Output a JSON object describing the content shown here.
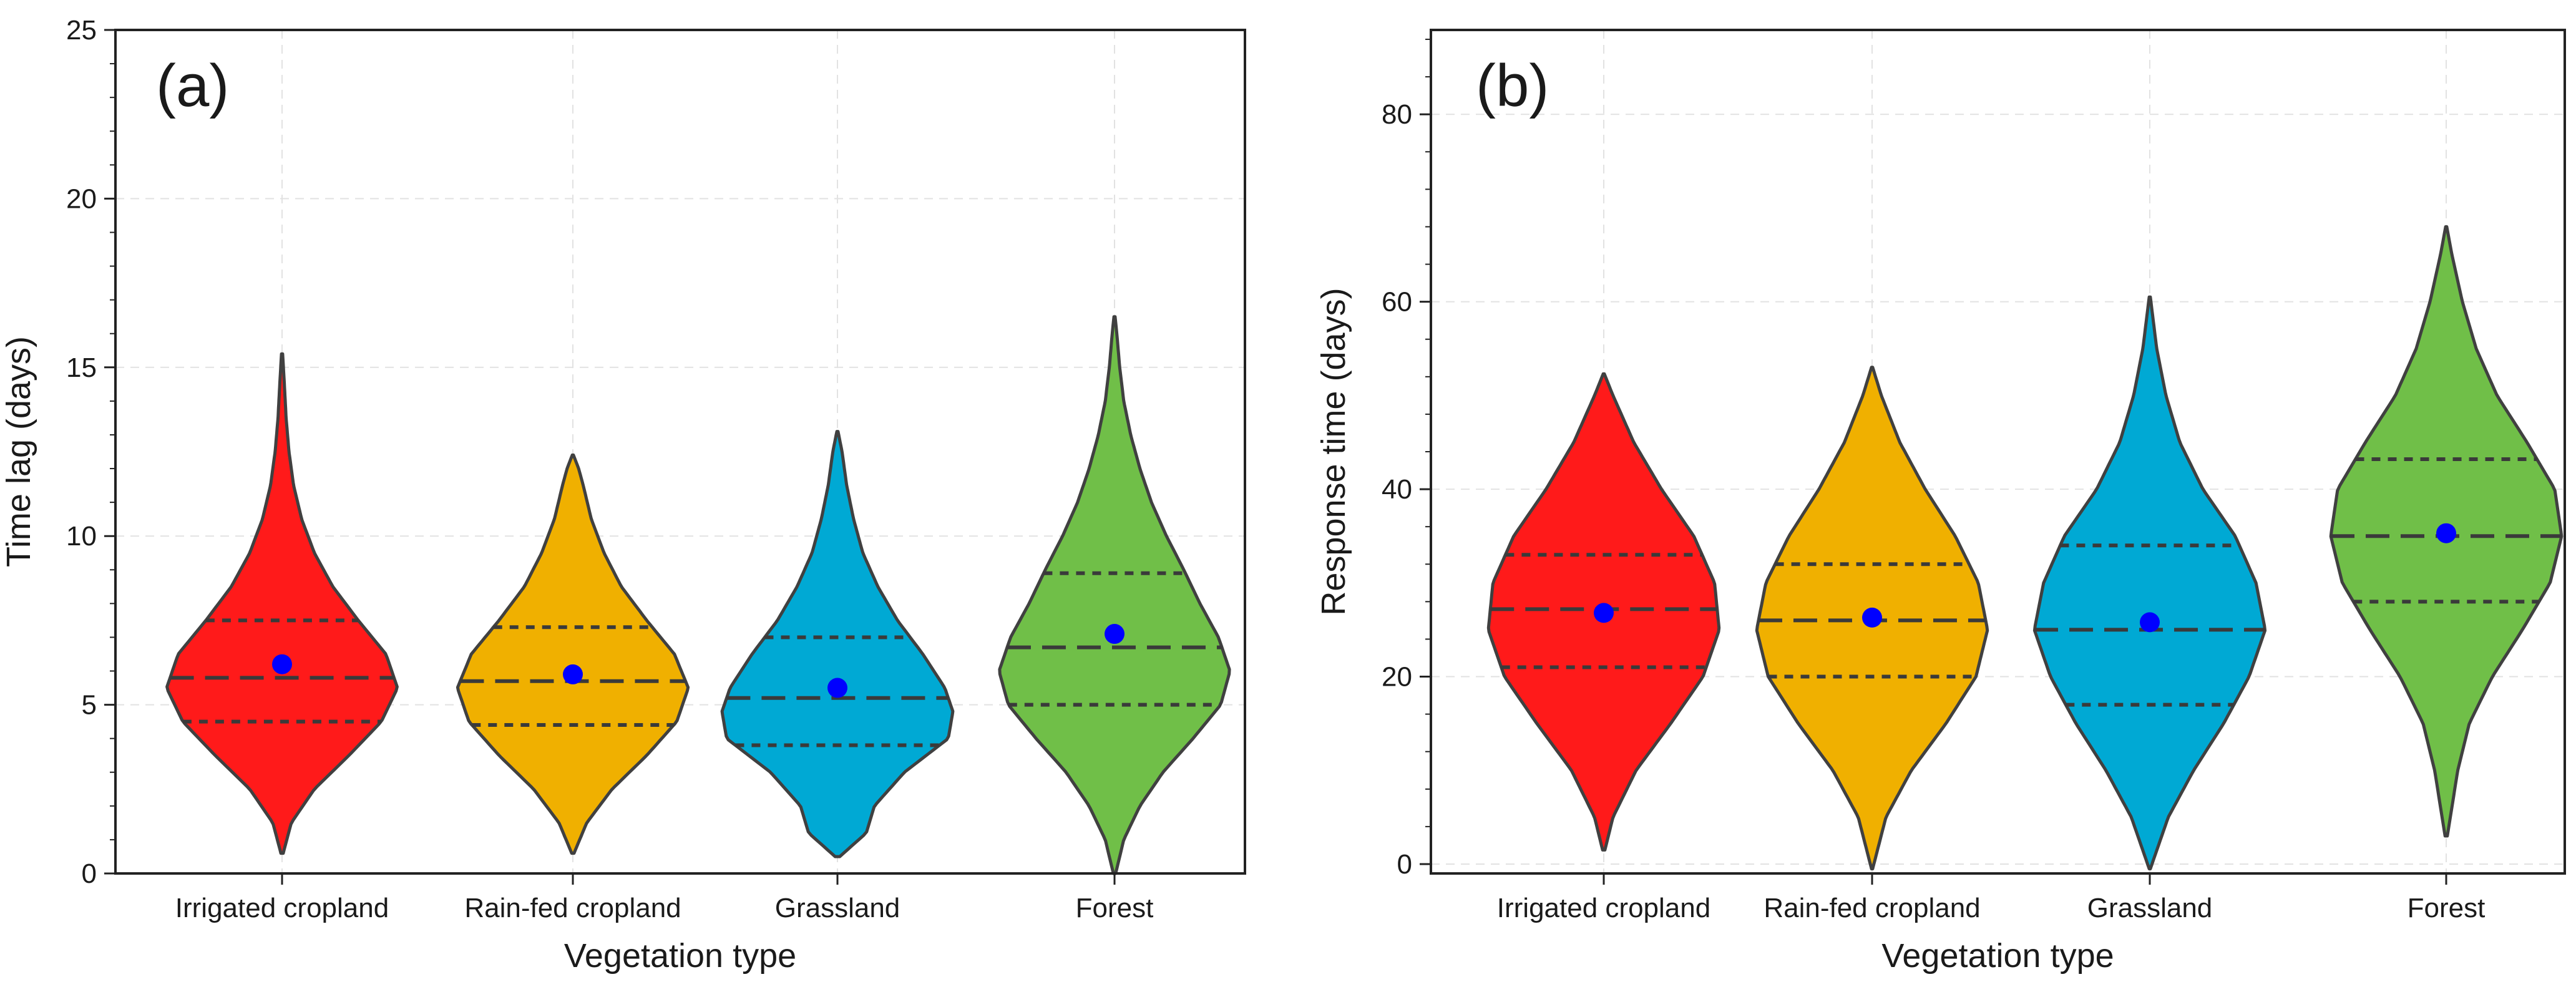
{
  "chart_data": [
    {
      "type": "violin",
      "panel_label": "(a)",
      "xlabel": "Vegetation type",
      "ylabel": "Time lag (days)",
      "ylim": [
        0,
        25
      ],
      "yticks": [
        0,
        5,
        10,
        15,
        20,
        25
      ],
      "grid": true,
      "categories": [
        "Irrigated cropland",
        "Rain-fed cropland",
        "Grassland",
        "Forest"
      ],
      "series": [
        {
          "name": "Irrigated cropland",
          "color": "#ff1a1a",
          "min": 0.6,
          "max": 15.4,
          "q1": 4.5,
          "median": 5.8,
          "q3": 7.5,
          "mean": 6.2,
          "shape": [
            [
              0.6,
              0.01
            ],
            [
              1.5,
              0.08
            ],
            [
              2.5,
              0.28
            ],
            [
              3.5,
              0.58
            ],
            [
              4.5,
              0.86
            ],
            [
              5.5,
              1.0
            ],
            [
              6.5,
              0.9
            ],
            [
              7.5,
              0.66
            ],
            [
              8.5,
              0.44
            ],
            [
              9.5,
              0.28
            ],
            [
              10.5,
              0.17
            ],
            [
              11.5,
              0.1
            ],
            [
              12.5,
              0.06
            ],
            [
              13.5,
              0.035
            ],
            [
              14.5,
              0.02
            ],
            [
              15.4,
              0.005
            ]
          ]
        },
        {
          "name": "Rain-fed cropland",
          "color": "#f0b000",
          "min": 0.6,
          "max": 12.4,
          "q1": 4.4,
          "median": 5.7,
          "q3": 7.3,
          "mean": 5.9,
          "shape": [
            [
              0.6,
              0.01
            ],
            [
              1.5,
              0.12
            ],
            [
              2.5,
              0.34
            ],
            [
              3.5,
              0.64
            ],
            [
              4.5,
              0.9
            ],
            [
              5.5,
              1.0
            ],
            [
              6.5,
              0.88
            ],
            [
              7.5,
              0.64
            ],
            [
              8.5,
              0.42
            ],
            [
              9.5,
              0.27
            ],
            [
              10.5,
              0.16
            ],
            [
              11.5,
              0.09
            ],
            [
              12.0,
              0.05
            ],
            [
              12.4,
              0.005
            ]
          ]
        },
        {
          "name": "Grassland",
          "color": "#00a9d4",
          "min": 0.5,
          "max": 13.1,
          "q1": 3.8,
          "median": 5.2,
          "q3": 7.0,
          "mean": 5.5,
          "shape": [
            [
              0.5,
              0.02
            ],
            [
              1.2,
              0.25
            ],
            [
              2.0,
              0.32
            ],
            [
              3.0,
              0.58
            ],
            [
              4.0,
              0.96
            ],
            [
              4.8,
              1.0
            ],
            [
              5.5,
              0.93
            ],
            [
              6.5,
              0.74
            ],
            [
              7.5,
              0.52
            ],
            [
              8.5,
              0.35
            ],
            [
              9.5,
              0.22
            ],
            [
              10.5,
              0.14
            ],
            [
              11.5,
              0.08
            ],
            [
              12.5,
              0.04
            ],
            [
              13.1,
              0.005
            ]
          ]
        },
        {
          "name": "Forest",
          "color": "#70bf48",
          "min": 0.0,
          "max": 16.5,
          "q1": 5.0,
          "median": 6.7,
          "q3": 8.9,
          "mean": 7.1,
          "shape": [
            [
              0.0,
              0.01
            ],
            [
              1.0,
              0.08
            ],
            [
              2.0,
              0.22
            ],
            [
              3.0,
              0.42
            ],
            [
              4.0,
              0.68
            ],
            [
              5.0,
              0.92
            ],
            [
              6.0,
              1.0
            ],
            [
              7.0,
              0.9
            ],
            [
              8.0,
              0.74
            ],
            [
              9.0,
              0.6
            ],
            [
              10.0,
              0.45
            ],
            [
              11.0,
              0.32
            ],
            [
              12.0,
              0.22
            ],
            [
              13.0,
              0.14
            ],
            [
              14.0,
              0.08
            ],
            [
              15.0,
              0.045
            ],
            [
              16.0,
              0.02
            ],
            [
              16.5,
              0.005
            ]
          ]
        }
      ]
    },
    {
      "type": "violin",
      "panel_label": "(b)",
      "xlabel": "Vegetation type",
      "ylabel": "Response time (days)",
      "ylim": [
        -1,
        89
      ],
      "yticks": [
        0,
        20,
        40,
        60,
        80
      ],
      "grid": true,
      "categories": [
        "Irrigated cropland",
        "Rain-fed cropland",
        "Grassland",
        "Forest"
      ],
      "series": [
        {
          "name": "Irrigated cropland",
          "color": "#ff1a1a",
          "min": 1.5,
          "max": 52.3,
          "q1": 21.0,
          "median": 27.2,
          "q3": 33.0,
          "mean": 26.8,
          "shape": [
            [
              1.5,
              0.01
            ],
            [
              5,
              0.08
            ],
            [
              10,
              0.28
            ],
            [
              15,
              0.58
            ],
            [
              20,
              0.86
            ],
            [
              25,
              1.0
            ],
            [
              30,
              0.96
            ],
            [
              35,
              0.78
            ],
            [
              40,
              0.5
            ],
            [
              45,
              0.26
            ],
            [
              50,
              0.08
            ],
            [
              52.3,
              0.005
            ]
          ]
        },
        {
          "name": "Rain-fed cropland",
          "color": "#f0b000",
          "min": -0.5,
          "max": 53.0,
          "q1": 20.0,
          "median": 26.0,
          "q3": 32.0,
          "mean": 26.3,
          "shape": [
            [
              -0.5,
              0.005
            ],
            [
              5,
              0.12
            ],
            [
              10,
              0.34
            ],
            [
              15,
              0.64
            ],
            [
              20,
              0.9
            ],
            [
              25,
              1.0
            ],
            [
              30,
              0.92
            ],
            [
              35,
              0.72
            ],
            [
              40,
              0.46
            ],
            [
              45,
              0.24
            ],
            [
              50,
              0.08
            ],
            [
              53.0,
              0.005
            ]
          ]
        },
        {
          "name": "Grassland",
          "color": "#00a9d4",
          "min": -0.5,
          "max": 60.5,
          "q1": 17.0,
          "median": 25.0,
          "q3": 34.0,
          "mean": 25.8,
          "shape": [
            [
              -0.5,
              0.005
            ],
            [
              5,
              0.16
            ],
            [
              10,
              0.38
            ],
            [
              15,
              0.64
            ],
            [
              20,
              0.86
            ],
            [
              25,
              1.0
            ],
            [
              30,
              0.92
            ],
            [
              35,
              0.74
            ],
            [
              40,
              0.46
            ],
            [
              45,
              0.26
            ],
            [
              50,
              0.14
            ],
            [
              55,
              0.06
            ],
            [
              60.5,
              0.005
            ]
          ]
        },
        {
          "name": "Forest",
          "color": "#70bf48",
          "min": 3.0,
          "max": 68.0,
          "q1": 28.0,
          "median": 35.0,
          "q3": 43.2,
          "mean": 35.3,
          "shape": [
            [
              3,
              0.01
            ],
            [
              10,
              0.1
            ],
            [
              15,
              0.2
            ],
            [
              20,
              0.4
            ],
            [
              25,
              0.66
            ],
            [
              30,
              0.9
            ],
            [
              35,
              1.0
            ],
            [
              40,
              0.94
            ],
            [
              45,
              0.7
            ],
            [
              50,
              0.44
            ],
            [
              55,
              0.26
            ],
            [
              60,
              0.14
            ],
            [
              65,
              0.05
            ],
            [
              68,
              0.005
            ]
          ]
        }
      ]
    }
  ]
}
